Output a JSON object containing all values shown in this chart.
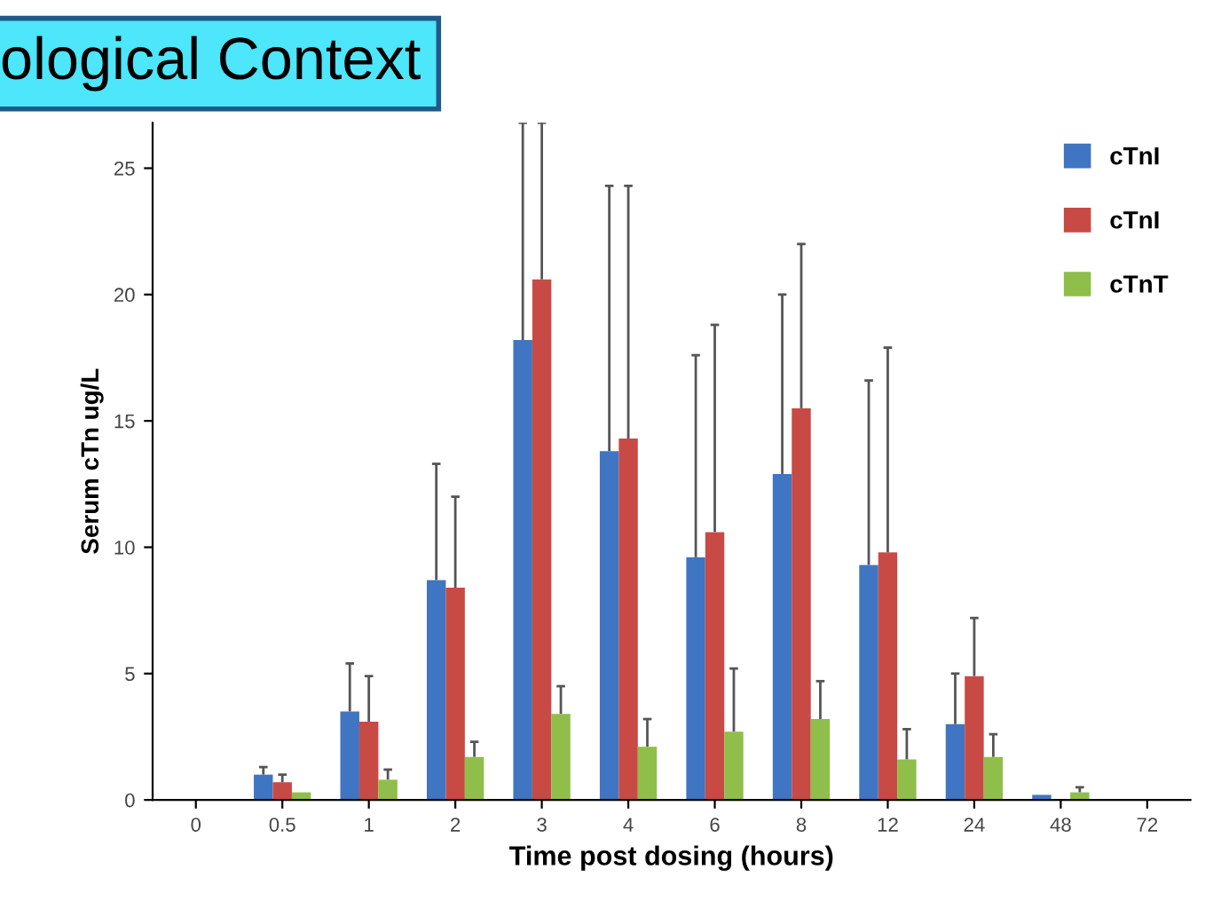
{
  "chart_data": {
    "type": "bar",
    "title": "ological Context",
    "xlabel": "Time post dosing (hours)",
    "ylabel": "Serum cTn ug/L",
    "categories": [
      "0",
      "0.5",
      "1",
      "2",
      "3",
      "4",
      "6",
      "8",
      "12",
      "24",
      "48",
      "72"
    ],
    "ylim": [
      0,
      26.8
    ],
    "yticks": [
      0,
      5,
      10,
      15,
      20,
      25
    ],
    "grid": false,
    "legend": "top right",
    "series": [
      {
        "name": "cTnI",
        "color": "#3f75c2",
        "values": [
          null,
          1.0,
          3.5,
          8.7,
          18.2,
          13.8,
          9.6,
          12.9,
          9.3,
          3.0,
          0.2,
          null
        ],
        "errors": [
          null,
          [
            1.0,
            1.3
          ],
          [
            3.5,
            5.4
          ],
          [
            8.7,
            13.3
          ],
          [
            18.2,
            26.8
          ],
          [
            13.8,
            24.3
          ],
          [
            9.6,
            17.6
          ],
          [
            12.9,
            20.0
          ],
          [
            9.3,
            16.6
          ],
          [
            3.0,
            5.0
          ],
          null,
          null
        ]
      },
      {
        "name": "cTnI",
        "color": "#c84a45",
        "values": [
          null,
          0.7,
          3.1,
          8.4,
          20.6,
          14.3,
          10.6,
          15.5,
          9.8,
          4.9,
          null,
          null
        ],
        "errors": [
          null,
          [
            0.7,
            1.0
          ],
          [
            3.1,
            4.9
          ],
          [
            8.4,
            12.0
          ],
          [
            20.6,
            26.8
          ],
          [
            14.3,
            24.3
          ],
          [
            10.6,
            18.8
          ],
          [
            15.5,
            22.0
          ],
          [
            9.8,
            17.9
          ],
          [
            4.9,
            7.2
          ],
          null,
          null
        ]
      },
      {
        "name": "cTnT",
        "color": "#8fbe4a",
        "values": [
          0,
          0.3,
          0.8,
          1.7,
          3.4,
          2.1,
          2.7,
          3.2,
          1.6,
          1.7,
          0.3,
          0
        ],
        "errors": [
          null,
          null,
          [
            0.8,
            1.2
          ],
          [
            1.7,
            2.3
          ],
          [
            3.4,
            4.5
          ],
          [
            2.1,
            3.2
          ],
          [
            2.7,
            5.2
          ],
          [
            3.2,
            4.7
          ],
          [
            1.6,
            2.8
          ],
          [
            1.7,
            2.6
          ],
          [
            0.3,
            0.5
          ],
          null
        ]
      }
    ]
  }
}
